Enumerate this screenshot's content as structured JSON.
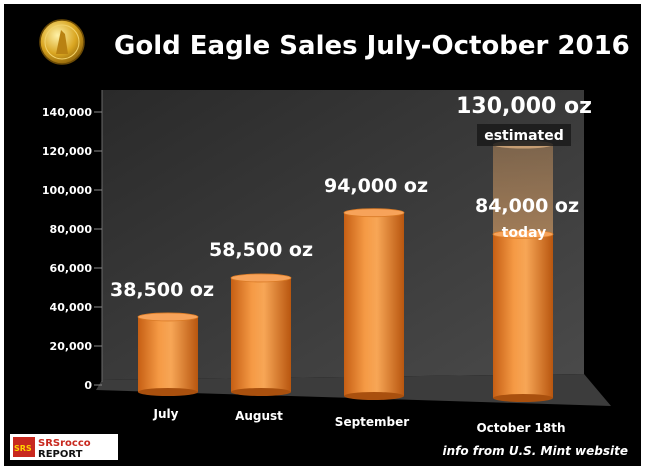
{
  "chart_data": {
    "type": "bar",
    "title": "Gold Eagle Sales July-October 2016",
    "categories": [
      "July",
      "August",
      "September",
      "October 18th"
    ],
    "values": [
      38500,
      58500,
      94000,
      84000
    ],
    "data_labels": [
      "38,500 oz",
      "58,500 oz",
      "94,000 oz",
      "84,000 oz"
    ],
    "today_label": "today",
    "estimate": {
      "value": 130000,
      "label": "130,000 oz",
      "note": "estimated"
    },
    "yticks": [
      0,
      20000,
      40000,
      60000,
      80000,
      100000,
      120000,
      140000
    ],
    "ytick_labels": [
      "0",
      "20,000",
      "40,000",
      "60,000",
      "80,000",
      "100,000",
      "120,000",
      "140,000"
    ],
    "ylim": [
      0,
      140000
    ],
    "xlabel": "",
    "ylabel": "",
    "grid": false,
    "legend": "none"
  },
  "footer": {
    "logo_text": "SRSrocco REPORT",
    "source": "info from U.S. Mint website"
  },
  "colors": {
    "background": "#000000",
    "bar": "#f08a2e",
    "bar_dark": "#b85a10",
    "text": "#ffffff",
    "estimate_glow": "#f7b066"
  },
  "icons": {
    "badge": "gold-coin-icon"
  }
}
